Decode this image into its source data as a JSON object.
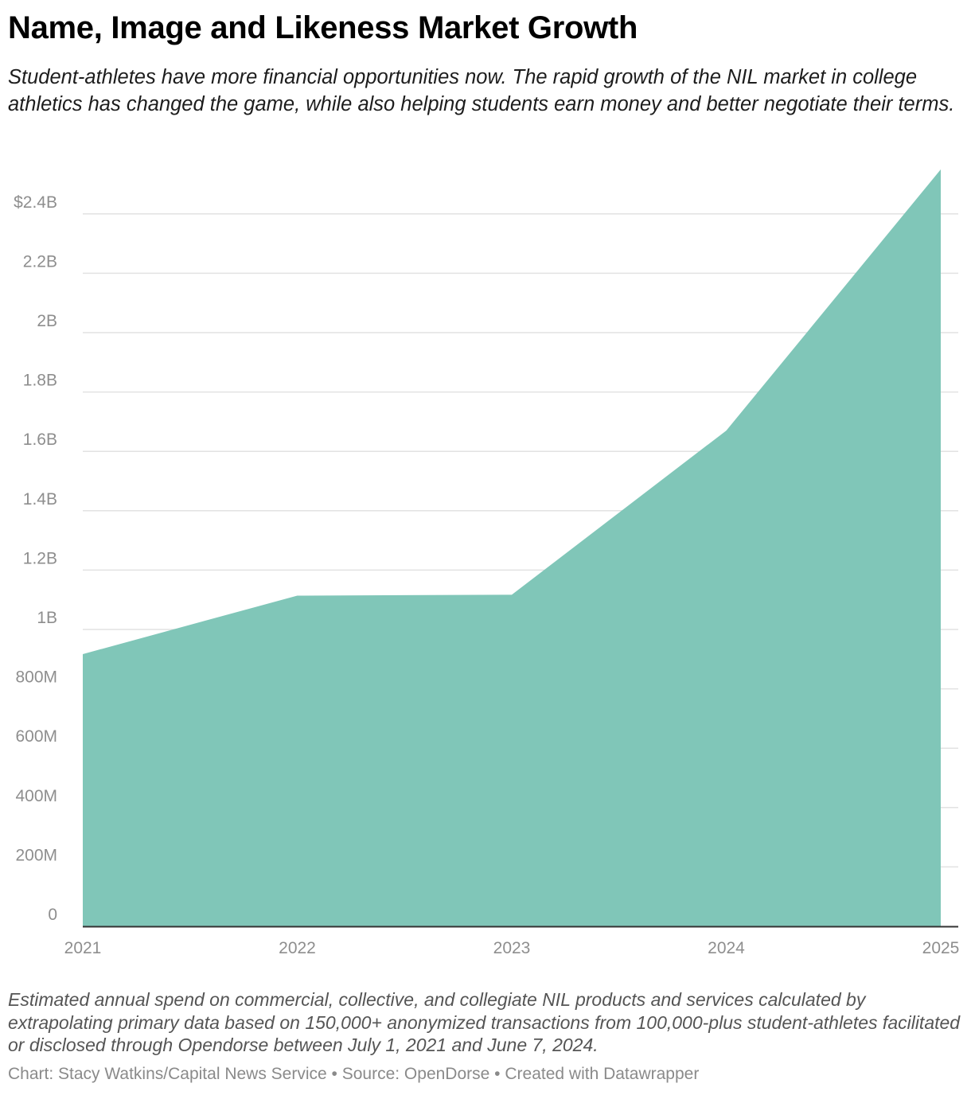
{
  "header": {
    "title": "Name, Image and Likeness Market Growth",
    "subtitle": "Student-athletes have more financial opportunities now. The rapid growth of the NIL market in college athletics has changed the game, while also helping students earn money and better negotiate their terms."
  },
  "footer": {
    "notes": "Estimated annual spend on commercial, collective, and collegiate NIL products and services calculated by extrapolating primary data based on 150,000+ anonymized transactions from 100,000-plus student-athletes facilitated or disclosed through Opendorse between July 1, 2021 and June 7, 2024.",
    "chart_credit": "Chart: Stacy Watkins/Capital News Service",
    "separator": " • ",
    "source": "Source: OpenDorse",
    "created_with": "Created with Datawrapper"
  },
  "chart_data": {
    "type": "area",
    "x": [
      "2021",
      "2022",
      "2023",
      "2024",
      "2025"
    ],
    "series": [
      {
        "values": [
          917000000,
          1114000000,
          1117000000,
          1670000000,
          2550000000
        ]
      }
    ],
    "ylim": [
      0,
      2550000000
    ],
    "yticks": [
      0,
      200000000,
      400000000,
      600000000,
      800000000,
      1000000000,
      1200000000,
      1400000000,
      1600000000,
      1800000000,
      2000000000,
      2200000000,
      2400000000
    ],
    "ytick_labels": [
      "0",
      "200M",
      "400M",
      "600M",
      "800M",
      "1B",
      "1.2B",
      "1.4B",
      "1.6B",
      "1.8B",
      "2B",
      "2.2B",
      "$2.4B"
    ],
    "grid": true,
    "colors": {
      "area": "#80c6b8",
      "grid": "#e2e2e2",
      "baseline": "#333333",
      "tick_label": "#8e8e8e"
    }
  }
}
